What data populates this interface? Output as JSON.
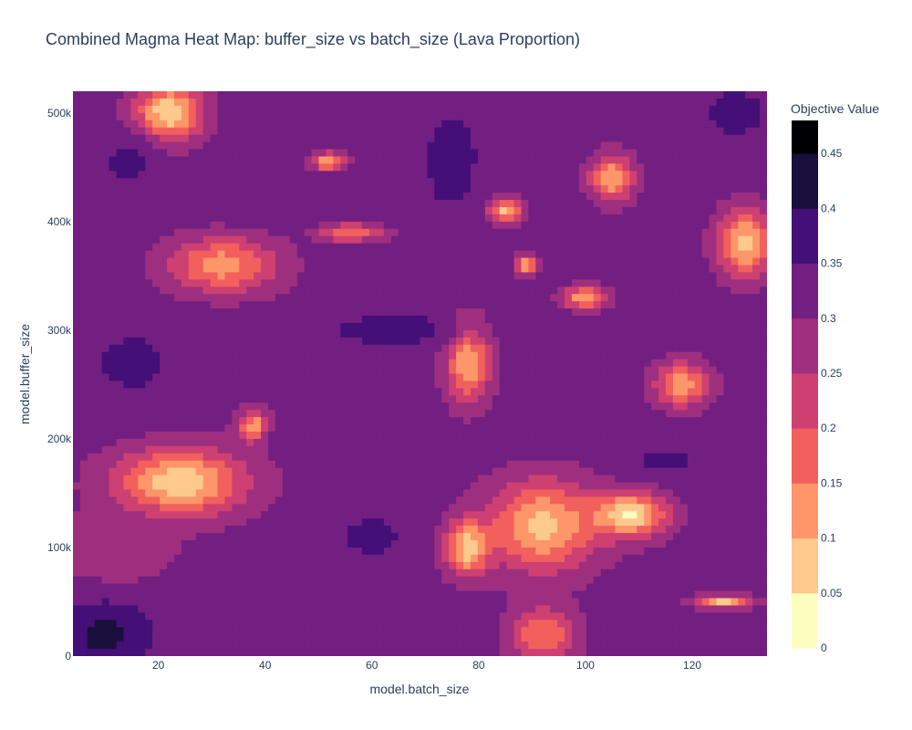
{
  "chart_data": {
    "type": "heatmap",
    "subtype": "filled-contour",
    "title": "Combined Magma Heat Map: buffer_size vs batch_size (Lava Proportion)",
    "xlabel": "model.batch_size",
    "ylabel": "model.buffer_size",
    "colorbar_title": "Objective Value",
    "xlim": [
      4,
      134
    ],
    "ylim": [
      0,
      520000
    ],
    "x_ticks": [
      {
        "value": 20,
        "label": "20"
      },
      {
        "value": 40,
        "label": "40"
      },
      {
        "value": 60,
        "label": "60"
      },
      {
        "value": 80,
        "label": "80"
      },
      {
        "value": 100,
        "label": "100"
      },
      {
        "value": 120,
        "label": "120"
      }
    ],
    "y_ticks": [
      {
        "value": 0,
        "label": "0"
      },
      {
        "value": 100000,
        "label": "100k"
      },
      {
        "value": 200000,
        "label": "200k"
      },
      {
        "value": 300000,
        "label": "300k"
      },
      {
        "value": 400000,
        "label": "400k"
      },
      {
        "value": 500000,
        "label": "500k"
      }
    ],
    "colorscale": "Magma (reversed)",
    "colorbar_range": [
      0,
      0.48
    ],
    "contour_levels": [
      {
        "from": 0,
        "to": 0.05,
        "color": "#fcfdbf"
      },
      {
        "from": 0.05,
        "to": 0.1,
        "color": "#fec98d"
      },
      {
        "from": 0.1,
        "to": 0.15,
        "color": "#fd9668"
      },
      {
        "from": 0.15,
        "to": 0.2,
        "color": "#f1605d"
      },
      {
        "from": 0.2,
        "to": 0.25,
        "color": "#cd4071"
      },
      {
        "from": 0.25,
        "to": 0.3,
        "color": "#9e2f7f"
      },
      {
        "from": 0.3,
        "to": 0.35,
        "color": "#721f81"
      },
      {
        "from": 0.35,
        "to": 0.4,
        "color": "#440f76"
      },
      {
        "from": 0.4,
        "to": 0.45,
        "color": "#180f3d"
      },
      {
        "from": 0.45,
        "to": 0.48,
        "color": "#000004"
      }
    ],
    "colorbar_ticks": [
      {
        "value": 0,
        "label": "0"
      },
      {
        "value": 0.05,
        "label": "0.05"
      },
      {
        "value": 0.1,
        "label": "0.1"
      },
      {
        "value": 0.15,
        "label": "0.15"
      },
      {
        "value": 0.2,
        "label": "0.2"
      },
      {
        "value": 0.25,
        "label": "0.25"
      },
      {
        "value": 0.3,
        "label": "0.3"
      },
      {
        "value": 0.35,
        "label": "0.35"
      },
      {
        "value": 0.4,
        "label": "0.4"
      },
      {
        "value": 0.45,
        "label": "0.45"
      }
    ],
    "base_value": 0.32,
    "regions": [
      {
        "x": 10,
        "y": 20000,
        "sx": 8,
        "sy": 30000,
        "v": 0.42
      },
      {
        "x": 22,
        "y": 500000,
        "sx": 6,
        "sy": 25000,
        "v": 0.05
      },
      {
        "x": 14,
        "y": 455000,
        "sx": 6,
        "sy": 25000,
        "v": 0.36
      },
      {
        "x": 32,
        "y": 360000,
        "sx": 10,
        "sy": 25000,
        "v": 0.12
      },
      {
        "x": 24,
        "y": 160000,
        "sx": 12,
        "sy": 30000,
        "v": 0.06
      },
      {
        "x": 38,
        "y": 210000,
        "sx": 3,
        "sy": 15000,
        "v": 0.1
      },
      {
        "x": 15,
        "y": 270000,
        "sx": 10,
        "sy": 40000,
        "v": 0.36
      },
      {
        "x": 12,
        "y": 100000,
        "sx": 10,
        "sy": 30000,
        "v": 0.25
      },
      {
        "x": 55,
        "y": 420000,
        "sx": 18,
        "sy": 20000,
        "v": 0.35
      },
      {
        "x": 52,
        "y": 455000,
        "sx": 3,
        "sy": 8000,
        "v": 0.1
      },
      {
        "x": 56,
        "y": 390000,
        "sx": 6,
        "sy": 8000,
        "v": 0.15
      },
      {
        "x": 75,
        "y": 460000,
        "sx": 6,
        "sy": 50000,
        "v": 0.37
      },
      {
        "x": 85,
        "y": 410000,
        "sx": 3,
        "sy": 10000,
        "v": 0.08
      },
      {
        "x": 78,
        "y": 270000,
        "sx": 4,
        "sy": 35000,
        "v": 0.1
      },
      {
        "x": 64,
        "y": 300000,
        "sx": 12,
        "sy": 15000,
        "v": 0.38
      },
      {
        "x": 92,
        "y": 120000,
        "sx": 10,
        "sy": 40000,
        "v": 0.08
      },
      {
        "x": 108,
        "y": 130000,
        "sx": 7,
        "sy": 20000,
        "v": 0.04
      },
      {
        "x": 78,
        "y": 100000,
        "sx": 4,
        "sy": 25000,
        "v": 0.06
      },
      {
        "x": 105,
        "y": 440000,
        "sx": 4,
        "sy": 20000,
        "v": 0.1
      },
      {
        "x": 130,
        "y": 380000,
        "sx": 5,
        "sy": 30000,
        "v": 0.08
      },
      {
        "x": 118,
        "y": 250000,
        "sx": 5,
        "sy": 20000,
        "v": 0.12
      },
      {
        "x": 128,
        "y": 500000,
        "sx": 7,
        "sy": 25000,
        "v": 0.37
      },
      {
        "x": 92,
        "y": 20000,
        "sx": 6,
        "sy": 25000,
        "v": 0.15
      },
      {
        "x": 60,
        "y": 110000,
        "sx": 8,
        "sy": 30000,
        "v": 0.36
      },
      {
        "x": 126,
        "y": 50000,
        "sx": 5,
        "sy": 6000,
        "v": 0.08
      },
      {
        "x": 89,
        "y": 360000,
        "sx": 2,
        "sy": 8000,
        "v": 0.08
      },
      {
        "x": 100,
        "y": 330000,
        "sx": 4,
        "sy": 10000,
        "v": 0.1
      },
      {
        "x": 115,
        "y": 180000,
        "sx": 8,
        "sy": 15000,
        "v": 0.36
      },
      {
        "x": 45,
        "y": 200000,
        "sx": 6,
        "sy": 10000,
        "v": 0.34
      }
    ]
  }
}
